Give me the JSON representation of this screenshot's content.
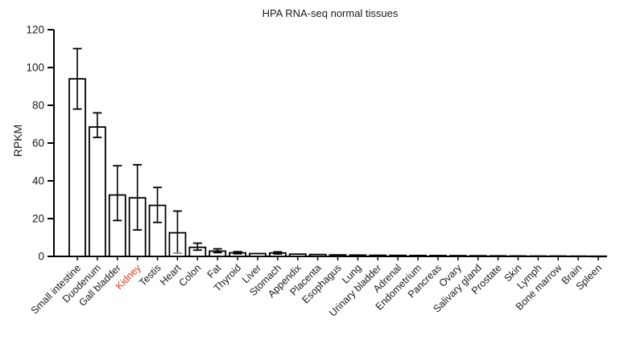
{
  "chart_data": {
    "type": "bar",
    "title": "HPA RNA-seq normal tissues",
    "xlabel": "",
    "ylabel": "RPKM",
    "ylim": [
      0,
      120
    ],
    "yticks": [
      0,
      20,
      40,
      60,
      80,
      100,
      120
    ],
    "grid": false,
    "legend": "none",
    "bar_fill": "#ffffff",
    "bar_stroke": "#000000",
    "axis_color": "#000000",
    "tick_label_color": "#1a1a1a",
    "highlight_label": "Kidney",
    "highlight_color": "#e23b1e",
    "gray_low_cap_categories": [
      "Heart"
    ],
    "gray_cap_color": "#8c8c8c",
    "categories": [
      "Small intestine",
      "Duodenum",
      "Gall bladder",
      "Kidney",
      "Testis",
      "Heart",
      "Colon",
      "Fat",
      "Thyroid",
      "Liver",
      "Stomach",
      "Appendix",
      "Placenta",
      "Esophagus",
      "Lung",
      "Urinary bladder",
      "Adrenal",
      "Endometrium",
      "Pancreas",
      "Ovary",
      "Salivary gland",
      "Prostate",
      "Skin",
      "Lymph",
      "Bone marrow",
      "Brain",
      "Spleen"
    ],
    "values": [
      94,
      68.5,
      32.5,
      31,
      27,
      12.5,
      4.8,
      2.8,
      1.9,
      1.5,
      1.8,
      1.2,
      1.0,
      0.8,
      0.7,
      0.6,
      0.55,
      0.5,
      0.45,
      0.4,
      0.35,
      0.3,
      0.25,
      0.2,
      0.2,
      0.15,
      0.1
    ],
    "error_high": [
      110,
      76,
      48,
      48.5,
      36.5,
      24,
      7,
      4,
      2.5,
      null,
      2.4,
      null,
      null,
      null,
      null,
      null,
      null,
      null,
      null,
      null,
      null,
      null,
      null,
      null,
      null,
      null,
      null
    ],
    "error_low": [
      78,
      63,
      19,
      14,
      18,
      1.7,
      3.3,
      2,
      1.4,
      null,
      1.3,
      null,
      null,
      null,
      null,
      null,
      null,
      null,
      null,
      null,
      null,
      null,
      null,
      null,
      null,
      null,
      null
    ]
  }
}
